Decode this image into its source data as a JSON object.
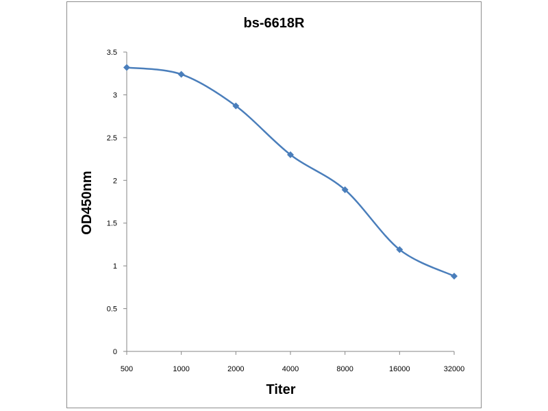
{
  "chart_data": {
    "type": "line",
    "title": "bs-6618R",
    "xlabel": "Titer",
    "ylabel": "OD450nm",
    "categories": [
      "500",
      "1000",
      "2000",
      "4000",
      "8000",
      "16000",
      "32000"
    ],
    "series": [
      {
        "values": [
          3.32,
          3.24,
          2.87,
          2.3,
          1.89,
          1.19,
          0.88
        ]
      }
    ],
    "ylim": [
      0,
      3.5
    ],
    "y_ticks": [
      "0",
      "0.5",
      "1",
      "1.5",
      "2",
      "2.5",
      "3",
      "3.5"
    ],
    "grid": false,
    "legend": "none",
    "line_color": "#4a7ebb"
  }
}
